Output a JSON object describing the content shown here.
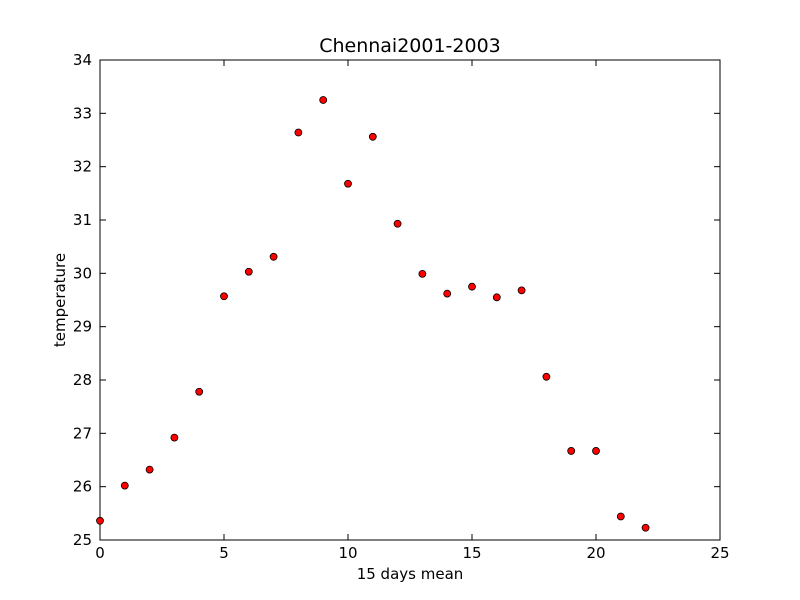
{
  "chart_data": {
    "type": "scatter",
    "title": "Chennai2001-2003",
    "xlabel": "15 days mean",
    "ylabel": "temperature",
    "xlim": [
      0,
      25
    ],
    "ylim": [
      25,
      34
    ],
    "xticks": [
      0,
      5,
      10,
      15,
      20,
      25
    ],
    "yticks": [
      25,
      26,
      27,
      28,
      29,
      30,
      31,
      32,
      33,
      34
    ],
    "grid": false,
    "marker_color": "#ff0000",
    "marker_edge_color": "#000000",
    "points": [
      {
        "x": 0,
        "y": 25.36
      },
      {
        "x": 1,
        "y": 26.02
      },
      {
        "x": 2,
        "y": 26.32
      },
      {
        "x": 3,
        "y": 26.92
      },
      {
        "x": 4,
        "y": 27.78
      },
      {
        "x": 5,
        "y": 29.57
      },
      {
        "x": 6,
        "y": 30.03
      },
      {
        "x": 7,
        "y": 30.31
      },
      {
        "x": 8,
        "y": 32.64
      },
      {
        "x": 9,
        "y": 33.25
      },
      {
        "x": 10,
        "y": 31.68
      },
      {
        "x": 11,
        "y": 32.56
      },
      {
        "x": 12,
        "y": 30.93
      },
      {
        "x": 13,
        "y": 29.99
      },
      {
        "x": 14,
        "y": 29.62
      },
      {
        "x": 15,
        "y": 29.75
      },
      {
        "x": 16,
        "y": 29.55
      },
      {
        "x": 17,
        "y": 29.68
      },
      {
        "x": 18,
        "y": 28.06
      },
      {
        "x": 19,
        "y": 26.67
      },
      {
        "x": 20,
        "y": 26.67
      },
      {
        "x": 21,
        "y": 25.44
      },
      {
        "x": 22,
        "y": 25.23
      }
    ]
  }
}
